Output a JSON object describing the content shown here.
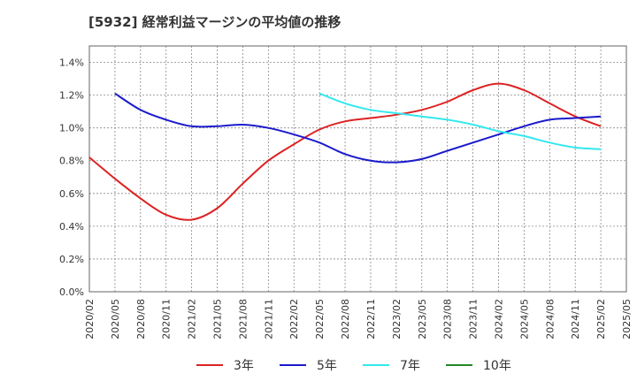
{
  "title": "[5932]  経常利益マージンの平均値の推移",
  "chart_data": {
    "type": "line",
    "title": "[5932]  経常利益マージンの平均値の推移",
    "xlabel": "",
    "ylabel": "",
    "x_ticks": [
      "2020/02",
      "2020/05",
      "2020/08",
      "2020/11",
      "2021/02",
      "2021/05",
      "2021/08",
      "2021/11",
      "2022/02",
      "2022/05",
      "2022/08",
      "2022/11",
      "2023/02",
      "2023/05",
      "2023/08",
      "2023/11",
      "2024/02",
      "2024/05",
      "2024/08",
      "2024/11",
      "2025/02",
      "2025/05"
    ],
    "y_ticks": [
      "0.0%",
      "0.2%",
      "0.4%",
      "0.6%",
      "0.8%",
      "1.0%",
      "1.2%",
      "1.4%"
    ],
    "ylim": [
      0,
      1.5
    ],
    "y_unit": "%",
    "grid": true,
    "legend_position": "bottom",
    "series": [
      {
        "name": "3年",
        "color": "#dd2222",
        "x": [
          "2020/02",
          "2020/05",
          "2020/08",
          "2020/11",
          "2021/02",
          "2021/05",
          "2021/08",
          "2021/11",
          "2022/02",
          "2022/05",
          "2022/08",
          "2022/11",
          "2023/02",
          "2023/05",
          "2023/08",
          "2023/11",
          "2024/02",
          "2024/05",
          "2024/08",
          "2024/11",
          "2025/02"
        ],
        "values": [
          0.82,
          0.69,
          0.57,
          0.47,
          0.44,
          0.51,
          0.66,
          0.8,
          0.9,
          0.99,
          1.04,
          1.06,
          1.08,
          1.11,
          1.16,
          1.23,
          1.27,
          1.23,
          1.15,
          1.07,
          1.01
        ]
      },
      {
        "name": "5年",
        "color": "#1a1acc",
        "x": [
          "2020/05",
          "2020/08",
          "2020/11",
          "2021/02",
          "2021/05",
          "2021/08",
          "2021/11",
          "2022/02",
          "2022/05",
          "2022/08",
          "2022/11",
          "2023/02",
          "2023/05",
          "2023/08",
          "2023/11",
          "2024/02",
          "2024/05",
          "2024/08",
          "2024/11",
          "2025/02"
        ],
        "values": [
          1.21,
          1.11,
          1.05,
          1.01,
          1.01,
          1.02,
          1.0,
          0.96,
          0.91,
          0.84,
          0.8,
          0.79,
          0.81,
          0.86,
          0.91,
          0.96,
          1.01,
          1.05,
          1.06,
          1.07
        ]
      },
      {
        "name": "7年",
        "color": "#33e8ee",
        "x": [
          "2022/05",
          "2022/08",
          "2022/11",
          "2023/02",
          "2023/05",
          "2023/08",
          "2023/11",
          "2024/02",
          "2024/05",
          "2024/08",
          "2024/11",
          "2025/02"
        ],
        "values": [
          1.21,
          1.15,
          1.11,
          1.09,
          1.07,
          1.05,
          1.02,
          0.98,
          0.95,
          0.91,
          0.88,
          0.87
        ]
      },
      {
        "name": "10年",
        "color": "#228822",
        "x": [],
        "values": []
      }
    ]
  }
}
